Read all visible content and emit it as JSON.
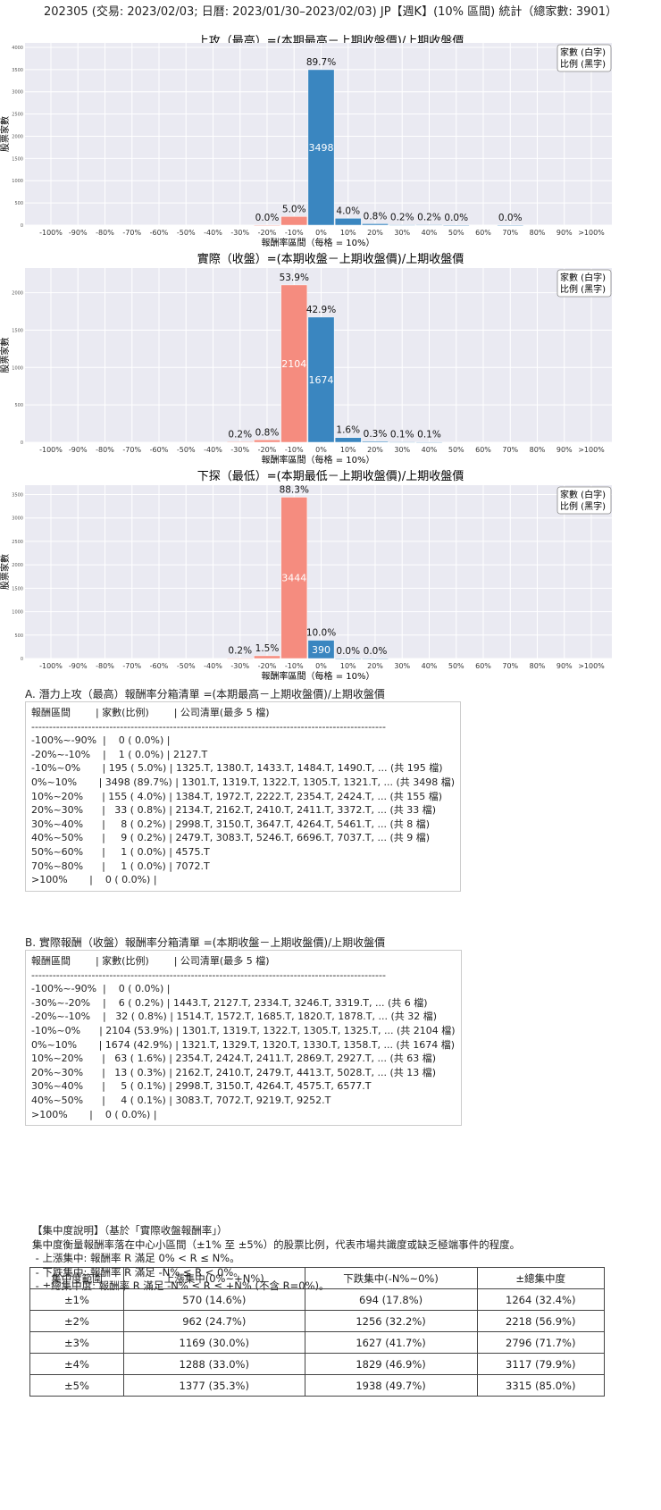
{
  "title": "202305 (交易: 2023/02/03; 日曆: 2023/01/30–2023/02/03) JP【週K】(10% 區間) 統計（總家數: 3901）",
  "colors": {
    "negative": "#f58c7f",
    "positive": "#3a86c0",
    "plot_bg": "#eaeaf2",
    "grid": "#ffffff"
  },
  "chart_data": [
    {
      "type": "bar",
      "title": "上攻（最高）=(本期最高－上期收盤價)/上期收盤價",
      "xlabel": "報酬率區間（每格 = 10%）",
      "ylabel": "股票家數",
      "legend": "家數 (白字)\n比例 (黑字)",
      "legend_lines": [
        "家數 (白字)",
        "比例 (黑字)"
      ],
      "legend_position": "top-right",
      "grid": true,
      "categories": [
        "-100%",
        "-90%",
        "-80%",
        "-70%",
        "-60%",
        "-50%",
        "-40%",
        "-30%",
        "-20%",
        "-10%",
        "0%",
        "10%",
        "20%",
        "30%",
        "40%",
        "50%",
        "60%",
        "70%",
        "80%",
        "90%",
        ">100%"
      ],
      "values": [
        0,
        0,
        0,
        0,
        0,
        0,
        0,
        0,
        1,
        195,
        3498,
        155,
        33,
        8,
        9,
        1,
        0,
        1,
        0,
        0,
        0
      ],
      "pct_labels": [
        null,
        null,
        null,
        null,
        null,
        null,
        null,
        null,
        "0.0%",
        "5.0%",
        "89.7%",
        "4.0%",
        "0.8%",
        "0.2%",
        "0.2%",
        "0.0%",
        null,
        "0.0%",
        null,
        null,
        null
      ],
      "ylim": [
        0,
        4100
      ],
      "yticks": [
        0,
        500,
        1000,
        1500,
        2000,
        2500,
        3000,
        3500,
        4000
      ]
    },
    {
      "type": "bar",
      "title": "實際（收盤）=(本期收盤－上期收盤價)/上期收盤價",
      "xlabel": "報酬率區間（每格 = 10%）",
      "ylabel": "股票家數",
      "legend_lines": [
        "家數 (白字)",
        "比例 (黑字)"
      ],
      "legend_position": "top-right",
      "grid": true,
      "categories": [
        "-100%",
        "-90%",
        "-80%",
        "-70%",
        "-60%",
        "-50%",
        "-40%",
        "-30%",
        "-20%",
        "-10%",
        "0%",
        "10%",
        "20%",
        "30%",
        "40%",
        "50%",
        "60%",
        "70%",
        "80%",
        "90%",
        ">100%"
      ],
      "values": [
        0,
        0,
        0,
        0,
        0,
        0,
        0,
        6,
        32,
        2104,
        1674,
        63,
        13,
        5,
        4,
        0,
        0,
        0,
        0,
        0,
        0
      ],
      "pct_labels": [
        null,
        null,
        null,
        null,
        null,
        null,
        null,
        "0.2%",
        "0.8%",
        "53.9%",
        "42.9%",
        "1.6%",
        "0.3%",
        "0.1%",
        "0.1%",
        null,
        null,
        null,
        null,
        null,
        null
      ],
      "ylim": [
        0,
        2330
      ],
      "yticks": [
        0,
        500,
        1000,
        1500,
        2000
      ]
    },
    {
      "type": "bar",
      "title": "下探（最低）=(本期最低－上期收盤價)/上期收盤價",
      "xlabel": "報酬率區間（每格 = 10%）",
      "ylabel": "股票家數",
      "legend_lines": [
        "家數 (白字)",
        "比例 (黑字)"
      ],
      "legend_position": "top-right",
      "grid": true,
      "categories": [
        "-100%",
        "-90%",
        "-80%",
        "-70%",
        "-60%",
        "-50%",
        "-40%",
        "-30%",
        "-20%",
        "-10%",
        "0%",
        "10%",
        "20%",
        "30%",
        "40%",
        "50%",
        "60%",
        "70%",
        "80%",
        "90%",
        ">100%"
      ],
      "values": [
        0,
        0,
        0,
        0,
        0,
        0,
        0,
        7,
        58,
        3444,
        390,
        1,
        1,
        0,
        0,
        0,
        0,
        0,
        0,
        0,
        0
      ],
      "pct_labels": [
        null,
        null,
        null,
        null,
        null,
        null,
        null,
        "0.2%",
        "1.5%",
        "88.3%",
        "10.0%",
        "0.0%",
        "0.0%",
        null,
        null,
        null,
        null,
        null,
        null,
        null,
        null
      ],
      "ylim": [
        0,
        3700
      ],
      "yticks": [
        0,
        500,
        1000,
        1500,
        2000,
        2500,
        3000,
        3500
      ]
    }
  ],
  "list_a": {
    "title": "A. 潛力上攻（最高）報酬率分箱清單 =(本期最高－上期收盤價)/上期收盤價",
    "lines": [
      "報酬區間        | 家數(比例)        | 公司清單(最多 5 檔)",
      "----------------------------------------------------------------------------------------------------",
      "-100%~-90%  |    0 ( 0.0%) |",
      "-20%~-10%    |    1 ( 0.0%) | 2127.T",
      "-10%~0%       | 195 ( 5.0%) | 1325.T, 1380.T, 1433.T, 1484.T, 1490.T, ... (共 195 檔)",
      "0%~10%       | 3498 (89.7%) | 1301.T, 1319.T, 1322.T, 1305.T, 1321.T, ... (共 3498 檔)",
      "10%~20%      | 155 ( 4.0%) | 1384.T, 1972.T, 2222.T, 2354.T, 2424.T, ... (共 155 檔)",
      "20%~30%      |   33 ( 0.8%) | 2134.T, 2162.T, 2410.T, 2411.T, 3372.T, ... (共 33 檔)",
      "30%~40%      |     8 ( 0.2%) | 2998.T, 3150.T, 3647.T, 4264.T, 5461.T, ... (共 8 檔)",
      "40%~50%      |     9 ( 0.2%) | 2479.T, 3083.T, 5246.T, 6696.T, 7037.T, ... (共 9 檔)",
      "50%~60%      |     1 ( 0.0%) | 4575.T",
      "70%~80%      |     1 ( 0.0%) | 7072.T",
      ">100%       |    0 ( 0.0%) |"
    ]
  },
  "list_b": {
    "title": "B. 實際報酬（收盤）報酬率分箱清單 =(本期收盤－上期收盤價)/上期收盤價",
    "lines": [
      "報酬區間        | 家數(比例)        | 公司清單(最多 5 檔)",
      "----------------------------------------------------------------------------------------------------",
      "-100%~-90%  |    0 ( 0.0%) |",
      "-30%~-20%    |    6 ( 0.2%) | 1443.T, 2127.T, 2334.T, 3246.T, 3319.T, ... (共 6 檔)",
      "-20%~-10%    |   32 ( 0.8%) | 1514.T, 1572.T, 1685.T, 1820.T, 1878.T, ... (共 32 檔)",
      "-10%~0%      | 2104 (53.9%) | 1301.T, 1319.T, 1322.T, 1305.T, 1325.T, ... (共 2104 檔)",
      "0%~10%       | 1674 (42.9%) | 1321.T, 1329.T, 1320.T, 1330.T, 1358.T, ... (共 1674 檔)",
      "10%~20%      |   63 ( 1.6%) | 2354.T, 2424.T, 2411.T, 2869.T, 2927.T, ... (共 63 檔)",
      "20%~30%      |   13 ( 0.3%) | 2162.T, 2410.T, 2479.T, 4413.T, 5028.T, ... (共 13 檔)",
      "30%~40%      |     5 ( 0.1%) | 2998.T, 3150.T, 4264.T, 4575.T, 6577.T",
      "40%~50%      |     4 ( 0.1%) | 3083.T, 7072.T, 9219.T, 9252.T",
      ">100%       |    0 ( 0.0%) |"
    ]
  },
  "concentration": {
    "lines": [
      "【集中度說明】（基於「實際收盤報酬率」）",
      "集中度衡量報酬率落在中心小區間（±1% 至 ±5%）的股票比例，代表市場共識度或缺乏極端事件的程度。",
      " - 上漲集中: 報酬率 R 滿足 0% < R ≤ N%。",
      " - 下跌集中: 報酬率 R 滿足 -N% ≤ R < 0%。",
      " - ±總集中度: 報酬率 R 滿足 -N% ≤ R ≤ +N% (不含 R=0%)。"
    ],
    "headers": [
      "集中度範圍",
      "上漲集中(0%~+N%)",
      "下跌集中(-N%~0%)",
      "±總集中度"
    ],
    "rows": [
      [
        "±1%",
        "570 (14.6%)",
        "694 (17.8%)",
        "1264 (32.4%)"
      ],
      [
        "±2%",
        "962 (24.7%)",
        "1256 (32.2%)",
        "2218 (56.9%)"
      ],
      [
        "±3%",
        "1169 (30.0%)",
        "1627 (41.7%)",
        "2796 (71.7%)"
      ],
      [
        "±4%",
        "1288 (33.0%)",
        "1829 (46.9%)",
        "3117 (79.9%)"
      ],
      [
        "±5%",
        "1377 (35.3%)",
        "1938 (49.7%)",
        "3315 (85.0%)"
      ]
    ]
  }
}
